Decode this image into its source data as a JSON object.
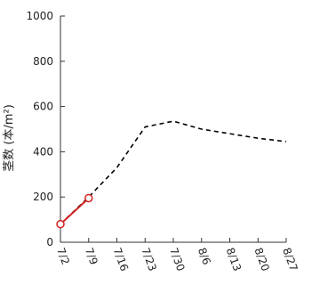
{
  "chart_data": {
    "type": "line",
    "title": "",
    "xlabel": "",
    "ylabel": "茎数 (本/m²)",
    "ylim": [
      0,
      1000
    ],
    "yticks": [
      "0",
      "200",
      "400",
      "600",
      "800",
      "1000"
    ],
    "x": [
      "7/2",
      "7/9",
      "7/16",
      "7/23",
      "7/30",
      "8/6",
      "8/13",
      "8/20",
      "8/27"
    ],
    "grid": false,
    "series": [
      {
        "style": "dashed",
        "color": "#000000",
        "values": [
          80,
          200,
          330,
          510,
          535,
          500,
          480,
          460,
          445
        ]
      },
      {
        "style": "solid",
        "marker": "circle-open",
        "color": "#d42020",
        "values": [
          80,
          195,
          null,
          null,
          null,
          null,
          null,
          null,
          null
        ]
      }
    ]
  }
}
